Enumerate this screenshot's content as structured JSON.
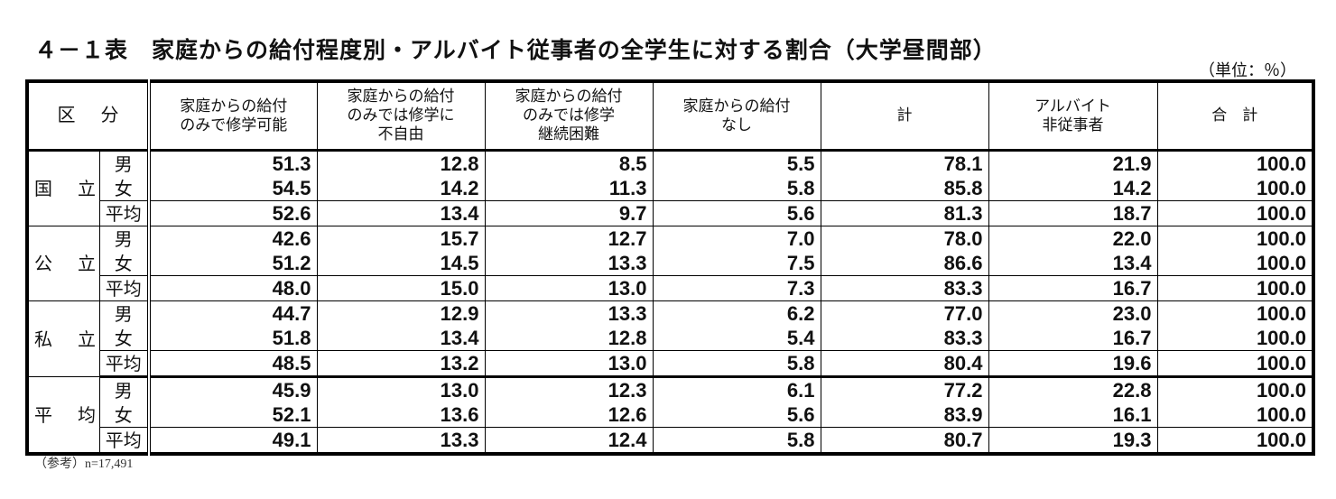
{
  "title": "４－１表　家庭からの給付程度別・アルバイト従事者の全学生に対する割合（大学昼間部）",
  "unit": "（単位：％）",
  "note": "（参考）n=17,491",
  "headers": {
    "kubun_1": "区",
    "kubun_2": "分",
    "cols": [
      "家庭からの給付\nのみで修学可能",
      "家庭からの給付\nのみでは修学に\n不自由",
      "家庭からの給付\nのみでは修学\n継続困難",
      "家庭からの給付\nなし",
      "計",
      "アルバイト\n非従事者",
      "合　計"
    ]
  },
  "groups": [
    {
      "name_1": "国",
      "name_2": "立",
      "rows": [
        {
          "label": "男",
          "values": [
            "51.3",
            "12.8",
            "8.5",
            "5.5",
            "78.1",
            "21.9",
            "100.0"
          ]
        },
        {
          "label": "女",
          "values": [
            "54.5",
            "14.2",
            "11.3",
            "5.8",
            "85.8",
            "14.2",
            "100.0"
          ]
        },
        {
          "label": "平均",
          "values": [
            "52.6",
            "13.4",
            "9.7",
            "5.6",
            "81.3",
            "18.7",
            "100.0"
          ]
        }
      ]
    },
    {
      "name_1": "公",
      "name_2": "立",
      "rows": [
        {
          "label": "男",
          "values": [
            "42.6",
            "15.7",
            "12.7",
            "7.0",
            "78.0",
            "22.0",
            "100.0"
          ]
        },
        {
          "label": "女",
          "values": [
            "51.2",
            "14.5",
            "13.3",
            "7.5",
            "86.6",
            "13.4",
            "100.0"
          ]
        },
        {
          "label": "平均",
          "values": [
            "48.0",
            "15.0",
            "13.0",
            "7.3",
            "83.3",
            "16.7",
            "100.0"
          ]
        }
      ]
    },
    {
      "name_1": "私",
      "name_2": "立",
      "rows": [
        {
          "label": "男",
          "values": [
            "44.7",
            "12.9",
            "13.3",
            "6.2",
            "77.0",
            "23.0",
            "100.0"
          ]
        },
        {
          "label": "女",
          "values": [
            "51.8",
            "13.4",
            "12.8",
            "5.4",
            "83.3",
            "16.7",
            "100.0"
          ]
        },
        {
          "label": "平均",
          "values": [
            "48.5",
            "13.2",
            "13.0",
            "5.8",
            "80.4",
            "19.6",
            "100.0"
          ]
        }
      ]
    },
    {
      "name_1": "平",
      "name_2": "均",
      "rows": [
        {
          "label": "男",
          "values": [
            "45.9",
            "13.0",
            "12.3",
            "6.1",
            "77.2",
            "22.8",
            "100.0"
          ]
        },
        {
          "label": "女",
          "values": [
            "52.1",
            "13.6",
            "12.6",
            "5.6",
            "83.9",
            "16.1",
            "100.0"
          ]
        },
        {
          "label": "平均",
          "values": [
            "49.1",
            "13.3",
            "12.4",
            "5.8",
            "80.7",
            "19.3",
            "100.0"
          ]
        }
      ]
    }
  ]
}
